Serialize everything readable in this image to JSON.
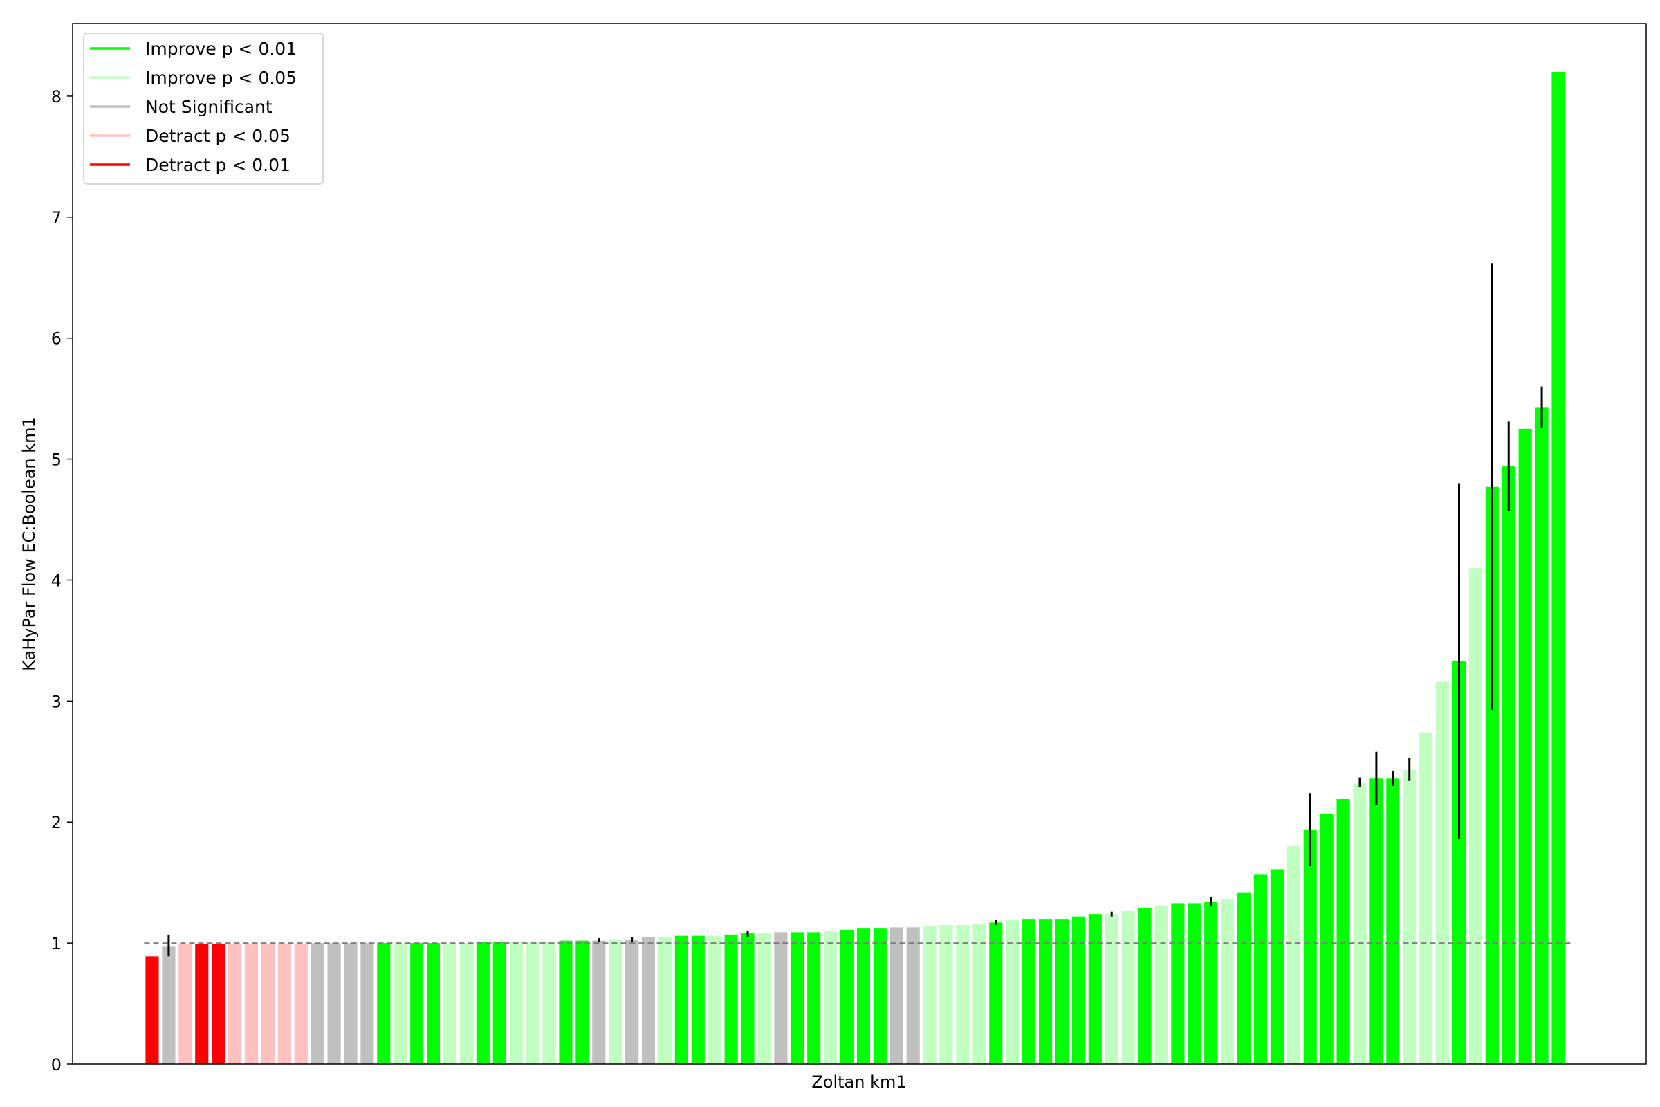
{
  "chart_data": {
    "type": "bar",
    "title": "",
    "xlabel": "Zoltan km1",
    "ylabel": "KaHyPar Flow EC:Boolean km1",
    "ylim": [
      0,
      8.6
    ],
    "yticks": [
      0,
      1,
      2,
      3,
      4,
      5,
      6,
      7,
      8
    ],
    "reference_line": 1.0,
    "legend_position": "top-left",
    "grid": false,
    "categories_colors": {
      "g": "#00ff00",
      "lg": "#c0ffc0",
      "gr": "#c0c0c0",
      "lr": "#ffc0c0",
      "r": "#ff0000"
    },
    "legend": [
      {
        "label": "Improve p < 0.01",
        "color": "#00ff00"
      },
      {
        "label": "Improve p < 0.05",
        "color": "#c0ffc0"
      },
      {
        "label": "Not Significant",
        "color": "#c0c0c0"
      },
      {
        "label": "Detract p < 0.05",
        "color": "#ffc0c0"
      },
      {
        "label": "Detract p < 0.01",
        "color": "#ff0000"
      }
    ],
    "bars": [
      {
        "v": 0.89,
        "c": "r"
      },
      {
        "v": 0.97,
        "c": "gr",
        "lo": 0.89,
        "hi": 1.07
      },
      {
        "v": 0.99,
        "c": "lr"
      },
      {
        "v": 0.99,
        "c": "r"
      },
      {
        "v": 0.99,
        "c": "r"
      },
      {
        "v": 0.995,
        "c": "lr"
      },
      {
        "v": 0.995,
        "c": "lr"
      },
      {
        "v": 0.995,
        "c": "lr"
      },
      {
        "v": 0.995,
        "c": "lr"
      },
      {
        "v": 0.995,
        "c": "lr"
      },
      {
        "v": 1.0,
        "c": "gr"
      },
      {
        "v": 1.0,
        "c": "gr"
      },
      {
        "v": 1.0,
        "c": "gr"
      },
      {
        "v": 1.0,
        "c": "gr"
      },
      {
        "v": 1.0,
        "c": "g"
      },
      {
        "v": 1.0,
        "c": "lg"
      },
      {
        "v": 1.0,
        "c": "g"
      },
      {
        "v": 1.0,
        "c": "g"
      },
      {
        "v": 1.0,
        "c": "lg"
      },
      {
        "v": 1.0,
        "c": "lg"
      },
      {
        "v": 1.01,
        "c": "g"
      },
      {
        "v": 1.01,
        "c": "g"
      },
      {
        "v": 1.01,
        "c": "lg"
      },
      {
        "v": 1.01,
        "c": "lg"
      },
      {
        "v": 1.01,
        "c": "lg"
      },
      {
        "v": 1.02,
        "c": "g"
      },
      {
        "v": 1.02,
        "c": "g"
      },
      {
        "v": 1.02,
        "c": "gr",
        "lo": 1.01,
        "hi": 1.04
      },
      {
        "v": 1.03,
        "c": "lg"
      },
      {
        "v": 1.03,
        "c": "gr",
        "lo": 1.01,
        "hi": 1.05
      },
      {
        "v": 1.05,
        "c": "gr"
      },
      {
        "v": 1.05,
        "c": "lg"
      },
      {
        "v": 1.06,
        "c": "g"
      },
      {
        "v": 1.06,
        "c": "g"
      },
      {
        "v": 1.06,
        "c": "lg"
      },
      {
        "v": 1.07,
        "c": "g"
      },
      {
        "v": 1.08,
        "c": "g",
        "lo": 1.05,
        "hi": 1.1
      },
      {
        "v": 1.08,
        "c": "lg"
      },
      {
        "v": 1.09,
        "c": "gr"
      },
      {
        "v": 1.09,
        "c": "g"
      },
      {
        "v": 1.09,
        "c": "g"
      },
      {
        "v": 1.1,
        "c": "lg"
      },
      {
        "v": 1.11,
        "c": "g"
      },
      {
        "v": 1.12,
        "c": "g"
      },
      {
        "v": 1.12,
        "c": "g"
      },
      {
        "v": 1.13,
        "c": "gr"
      },
      {
        "v": 1.13,
        "c": "gr"
      },
      {
        "v": 1.14,
        "c": "lg"
      },
      {
        "v": 1.15,
        "c": "lg"
      },
      {
        "v": 1.15,
        "c": "lg"
      },
      {
        "v": 1.16,
        "c": "lg"
      },
      {
        "v": 1.17,
        "c": "g",
        "lo": 1.15,
        "hi": 1.19
      },
      {
        "v": 1.19,
        "c": "lg"
      },
      {
        "v": 1.2,
        "c": "g"
      },
      {
        "v": 1.2,
        "c": "g"
      },
      {
        "v": 1.2,
        "c": "g"
      },
      {
        "v": 1.22,
        "c": "g"
      },
      {
        "v": 1.24,
        "c": "g"
      },
      {
        "v": 1.24,
        "c": "lg",
        "lo": 1.22,
        "hi": 1.26
      },
      {
        "v": 1.27,
        "c": "lg"
      },
      {
        "v": 1.29,
        "c": "g"
      },
      {
        "v": 1.31,
        "c": "lg"
      },
      {
        "v": 1.33,
        "c": "g"
      },
      {
        "v": 1.33,
        "c": "g"
      },
      {
        "v": 1.34,
        "c": "g",
        "lo": 1.31,
        "hi": 1.38
      },
      {
        "v": 1.36,
        "c": "lg"
      },
      {
        "v": 1.42,
        "c": "g"
      },
      {
        "v": 1.57,
        "c": "g"
      },
      {
        "v": 1.61,
        "c": "g"
      },
      {
        "v": 1.8,
        "c": "lg"
      },
      {
        "v": 1.94,
        "c": "g",
        "lo": 1.64,
        "hi": 2.24
      },
      {
        "v": 2.07,
        "c": "g"
      },
      {
        "v": 2.19,
        "c": "g"
      },
      {
        "v": 2.32,
        "c": "lg",
        "lo": 2.29,
        "hi": 2.37
      },
      {
        "v": 2.36,
        "c": "g",
        "lo": 2.14,
        "hi": 2.58
      },
      {
        "v": 2.36,
        "c": "g",
        "lo": 2.3,
        "hi": 2.42
      },
      {
        "v": 2.43,
        "c": "lg",
        "lo": 2.34,
        "hi": 2.53
      },
      {
        "v": 2.74,
        "c": "lg"
      },
      {
        "v": 3.16,
        "c": "lg"
      },
      {
        "v": 3.33,
        "c": "g",
        "lo": 1.86,
        "hi": 4.8
      },
      {
        "v": 4.1,
        "c": "lg"
      },
      {
        "v": 4.77,
        "c": "g",
        "lo": 2.93,
        "hi": 6.62
      },
      {
        "v": 4.94,
        "c": "g",
        "lo": 4.57,
        "hi": 5.31
      },
      {
        "v": 5.25,
        "c": "g"
      },
      {
        "v": 5.43,
        "c": "g",
        "lo": 5.26,
        "hi": 5.6
      },
      {
        "v": 8.2,
        "c": "g"
      }
    ]
  }
}
